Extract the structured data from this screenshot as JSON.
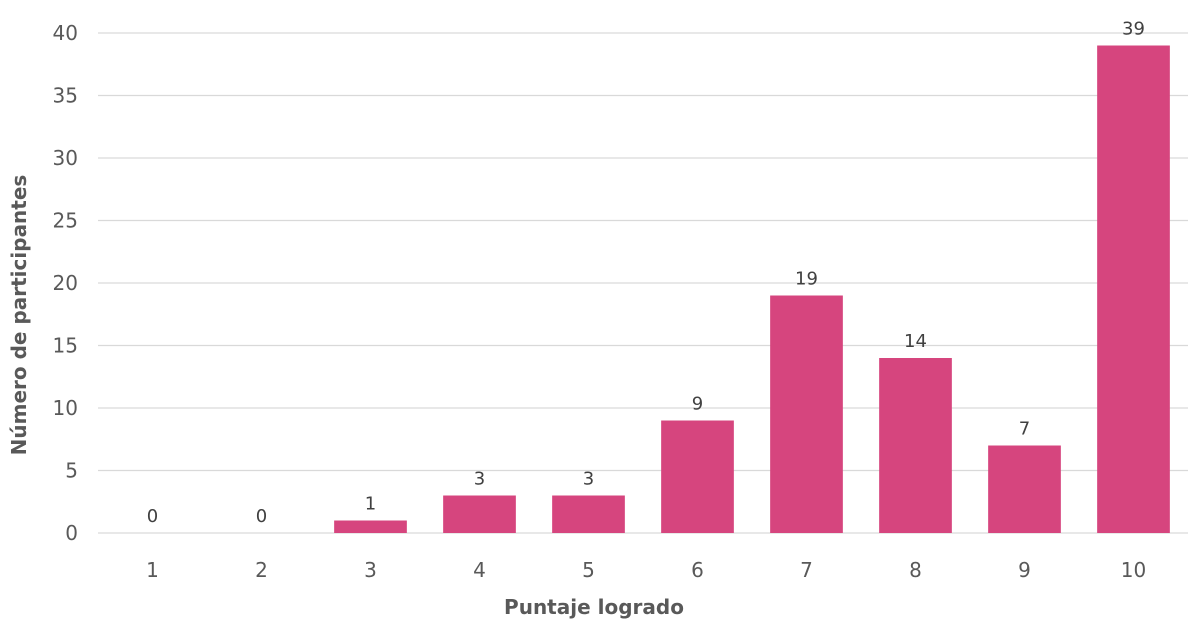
{
  "chart_data": {
    "type": "bar",
    "categories": [
      "1",
      "2",
      "3",
      "4",
      "5",
      "6",
      "7",
      "8",
      "9",
      "10"
    ],
    "values": [
      0,
      0,
      1,
      3,
      3,
      9,
      19,
      14,
      7,
      39
    ],
    "title": "",
    "xlabel": "Puntaje logrado",
    "ylabel": "Número de participantes",
    "ylim": [
      0,
      40
    ],
    "yticks": [
      0,
      5,
      10,
      15,
      20,
      25,
      30,
      35,
      40
    ],
    "grid": true,
    "data_labels": true,
    "bar_color": "#d6457e"
  }
}
